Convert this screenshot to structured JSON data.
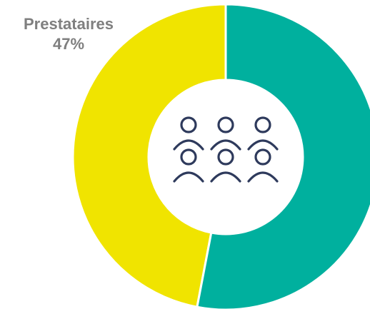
{
  "chart_data": {
    "type": "pie",
    "donut": true,
    "slices": [
      {
        "label": "Prestataires",
        "value": 47,
        "value_label": "47%",
        "color": "#f0e400"
      },
      {
        "label": "",
        "value": 53,
        "value_label": "",
        "color": "#00b09e"
      }
    ],
    "center_icon": "people-group-icon",
    "icon_color": "#2e3a5c",
    "legend": "none"
  }
}
